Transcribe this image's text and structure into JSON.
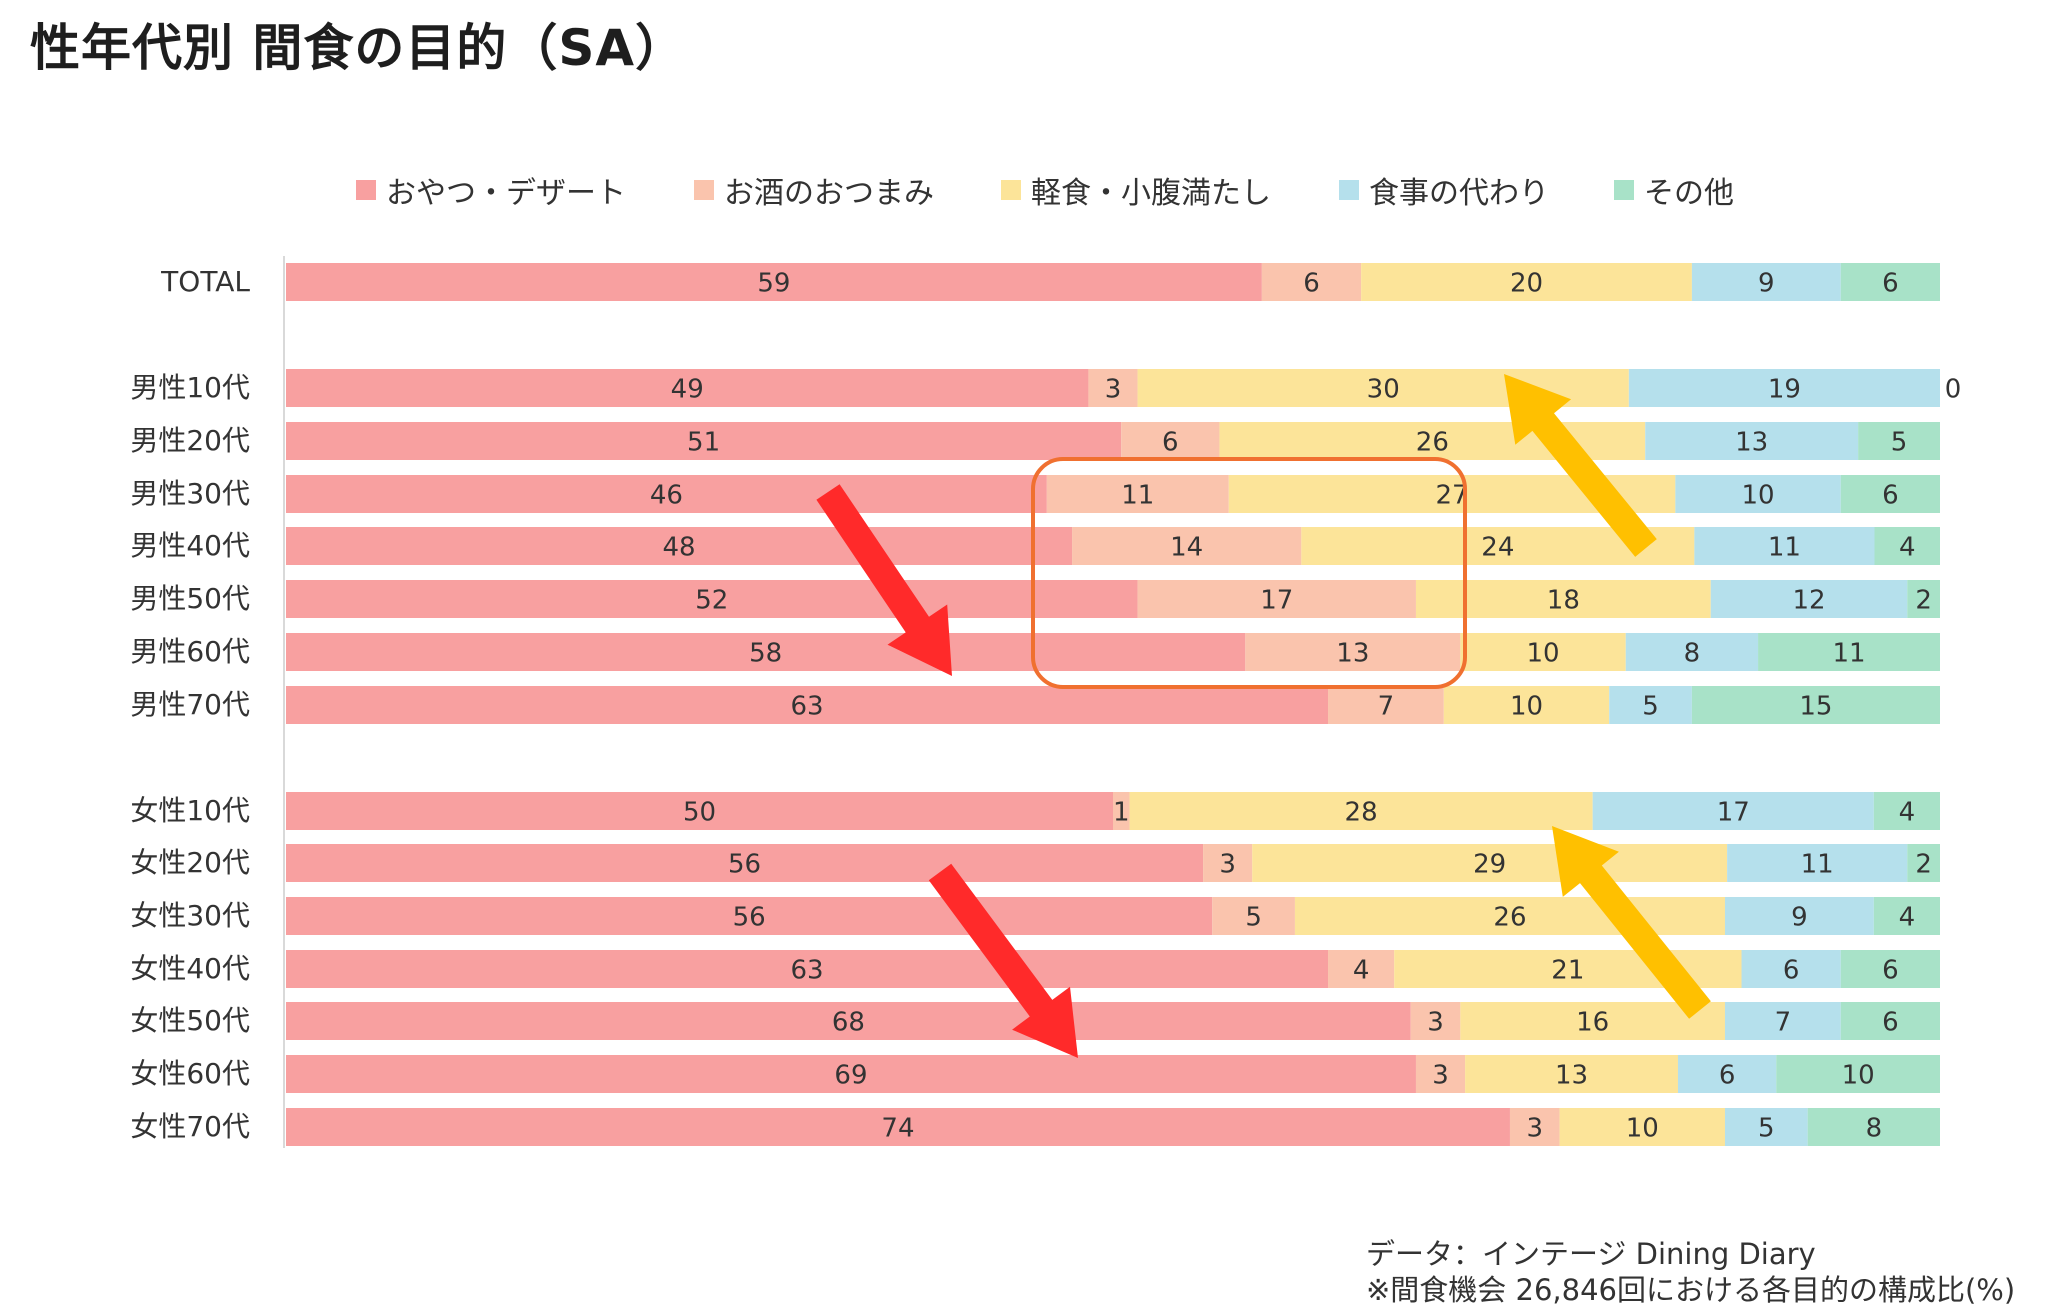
{
  "title": "性年代別 間食の目的（SA）",
  "legend": [
    {
      "label": "おやつ・デザート",
      "color": "#f8a0a0"
    },
    {
      "label": "お酒のおつまみ",
      "color": "#fac4ad"
    },
    {
      "label": "軽食・小腹満たし",
      "color": "#fce499"
    },
    {
      "label": "食事の代わり",
      "color": "#b5e0ec"
    },
    {
      "label": "その他",
      "color": "#a8e2c8"
    }
  ],
  "source": {
    "line1": "データ：インテージ Dining Diary",
    "line2": "※間食機会 26,846回における各目的の構成比(%)"
  },
  "chart_data": {
    "type": "bar",
    "orientation": "horizontal-stacked-100",
    "categories": [
      "TOTAL",
      "男性10代",
      "男性20代",
      "男性30代",
      "男性40代",
      "男性50代",
      "男性60代",
      "男性70代",
      "女性10代",
      "女性20代",
      "女性30代",
      "女性40代",
      "女性50代",
      "女性60代",
      "女性70代"
    ],
    "series": [
      {
        "name": "おやつ・デザート",
        "color": "#f8a0a0",
        "values": [
          59,
          49,
          51,
          46,
          48,
          52,
          58,
          63,
          50,
          56,
          56,
          63,
          68,
          69,
          74
        ]
      },
      {
        "name": "お酒のおつまみ",
        "color": "#fac4ad",
        "values": [
          6,
          3,
          6,
          11,
          14,
          17,
          13,
          7,
          1,
          3,
          5,
          4,
          3,
          3,
          3
        ]
      },
      {
        "name": "軽食・小腹満たし",
        "color": "#fce499",
        "values": [
          20,
          30,
          26,
          27,
          24,
          18,
          10,
          10,
          28,
          29,
          26,
          21,
          16,
          13,
          10
        ]
      },
      {
        "name": "食事の代わり",
        "color": "#b5e0ec",
        "values": [
          9,
          19,
          13,
          10,
          11,
          12,
          8,
          5,
          17,
          11,
          9,
          6,
          7,
          6,
          5
        ]
      },
      {
        "name": "その他",
        "color": "#a8e2c8",
        "values": [
          6,
          0,
          5,
          6,
          4,
          2,
          11,
          15,
          4,
          2,
          4,
          6,
          6,
          10,
          8
        ]
      }
    ],
    "xlim": [
      0,
      100
    ],
    "data_labels": true,
    "legend_position": "top",
    "grid": false,
    "annotations": [
      {
        "shape": "arrow",
        "color": "#ff2a2a",
        "meaning": "おやつ・デザート increases with age (male)"
      },
      {
        "shape": "arrow",
        "color": "#ffc000",
        "meaning": "軽食・小腹満たし higher for younger (male)"
      },
      {
        "shape": "rounded-box",
        "color": "#f07030",
        "meaning": "お酒のおつまみ highlight 男性30代–60代"
      },
      {
        "shape": "arrow",
        "color": "#ff2a2a",
        "meaning": "おやつ・デザート increases with age (female)"
      },
      {
        "shape": "arrow",
        "color": "#ffc000",
        "meaning": "軽食・小腹満たし higher for younger (female)"
      }
    ]
  }
}
